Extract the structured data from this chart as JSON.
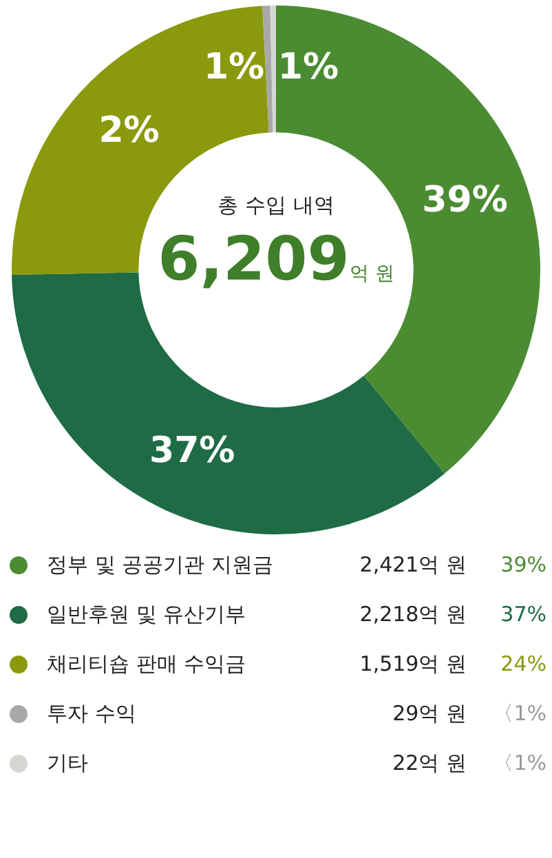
{
  "chart_data": {
    "type": "donut",
    "title": "총 수입 내역",
    "subtitle": "6,209억 원",
    "categories": [
      "정부 및 공공기관 지원금",
      "일반후원 및 유산기부",
      "채리티숍 판매 수익금",
      "투자 수익",
      "기타"
    ],
    "values": [
      2421,
      2218,
      1519,
      29,
      22
    ],
    "colors": [
      "#4b8c32",
      "#1e6b45",
      "#8a9a0c",
      "#a8a8a8",
      "#d6d6d2"
    ],
    "value_labels": [
      "2,421억 원",
      "2,218억 원",
      "1,519억 원",
      "29억 원",
      "22억 원"
    ],
    "annotations": [
      "39%",
      "37%",
      "2%",
      "1%",
      "1%",
      "39%",
      "37%",
      "24%",
      "〈1%",
      "〈1%"
    ],
    "legend": "bottom"
  }
}
